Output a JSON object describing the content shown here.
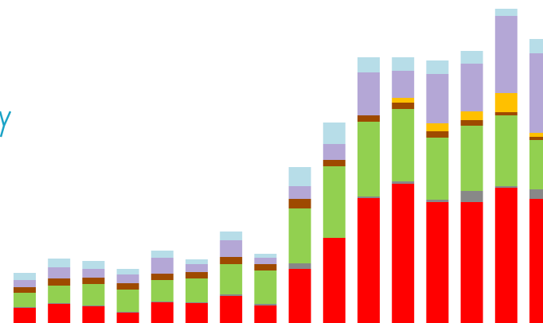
{
  "chart_data": {
    "type": "bar",
    "stacked": true,
    "ylim": [
      0,
      400
    ],
    "categories": [
      "",
      "",
      "",
      "",
      "",
      "",
      "",
      "",
      "",
      "",
      "",
      "",
      "",
      "",
      "",
      ""
    ],
    "colors": {
      "s1": "#ff0000",
      "s2": "#888888",
      "s3": "#92d050",
      "s4": "#9e4a00",
      "s5": "#ffc000",
      "s6": "#b4a7d6",
      "s7": "#b7dde8"
    },
    "series": [
      {
        "key": "s1",
        "values": [
          19,
          24,
          21,
          13,
          26,
          25,
          34,
          22,
          68,
          107,
          157,
          175,
          152,
          152,
          170,
          156
        ]
      },
      {
        "key": "s2",
        "values": [
          1,
          1,
          1,
          1,
          1,
          1,
          2,
          2,
          7,
          0,
          2,
          3,
          3,
          14,
          2,
          12
        ]
      },
      {
        "key": "s3",
        "values": [
          18,
          22,
          27,
          28,
          27,
          30,
          38,
          42,
          69,
          90,
          94,
          91,
          78,
          82,
          89,
          62
        ]
      },
      {
        "key": "s4",
        "values": [
          7,
          9,
          8,
          8,
          8,
          8,
          9,
          8,
          12,
          8,
          8,
          8,
          8,
          7,
          4,
          4
        ]
      },
      {
        "key": "s5",
        "values": [
          0,
          0,
          0,
          0,
          0,
          0,
          0,
          0,
          0,
          0,
          0,
          6,
          10,
          11,
          24,
          5
        ]
      },
      {
        "key": "s6",
        "values": [
          9,
          14,
          11,
          11,
          20,
          10,
          21,
          8,
          16,
          20,
          54,
          34,
          62,
          60,
          97,
          100
        ]
      },
      {
        "key": "s7",
        "values": [
          9,
          11,
          10,
          7,
          9,
          6,
          11,
          5,
          24,
          27,
          19,
          17,
          17,
          16,
          9,
          18
        ]
      }
    ]
  }
}
